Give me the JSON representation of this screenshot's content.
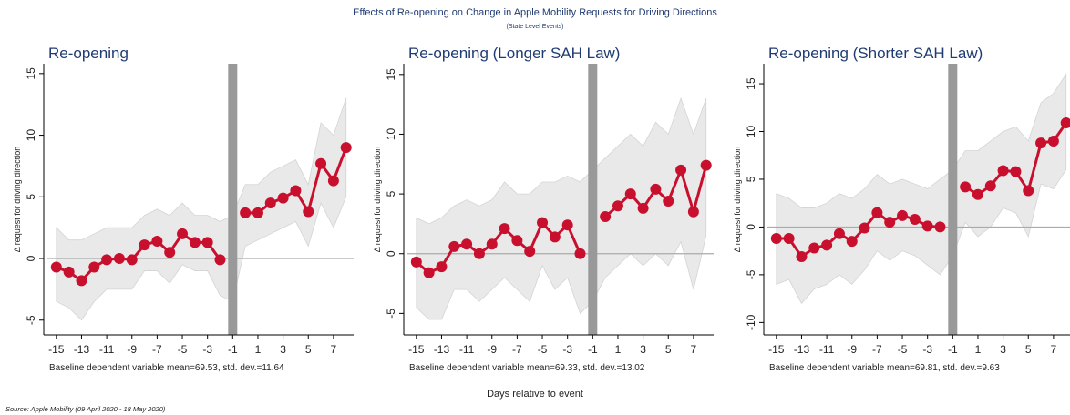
{
  "title": "Effects of Re-opening on Change in Apple Mobility Requests for Driving Directions",
  "subtitle": "(State Level Events)",
  "xlabel": "Days relative to event",
  "source": "Source: Apple Mobility (09 April 2020 - 18 May 2020)",
  "chart_data": [
    {
      "type": "line",
      "title": "Re-opening",
      "ylabel": "Δ request for driving direction",
      "note": "Baseline dependent variable mean=69.53, std. dev.=11.64",
      "x": [
        -15,
        -14,
        -13,
        -12,
        -11,
        -10,
        -9,
        -8,
        -7,
        -6,
        -5,
        -4,
        -3,
        -2,
        -1,
        0,
        1,
        2,
        3,
        4,
        5,
        6,
        7,
        8
      ],
      "values": [
        -0.7,
        -1.1,
        -1.8,
        -0.7,
        -0.1,
        0,
        -0.1,
        1.1,
        1.4,
        0.5,
        2.0,
        1.3,
        1.3,
        -0.1,
        null,
        3.7,
        3.7,
        4.5,
        4.9,
        5.5,
        3.8,
        7.7,
        6.3,
        9.0
      ],
      "ci_upper": [
        2.5,
        1.5,
        1.5,
        2,
        2.5,
        2.5,
        2.5,
        3.5,
        4,
        3.5,
        4.5,
        3.5,
        3.5,
        3,
        3.5,
        6,
        6,
        7,
        7.5,
        8,
        6,
        11,
        10,
        13
      ],
      "ci_lower": [
        -3.5,
        -4,
        -5,
        -3.5,
        -2.5,
        -2.5,
        -2.5,
        -1,
        -1,
        -2,
        -0.5,
        -1,
        -1,
        -3,
        -3.5,
        1,
        1.5,
        2,
        2.5,
        3,
        1,
        4.5,
        2.5,
        5
      ],
      "color": "#c8102e",
      "band_color": "#e9e9e9",
      "event_x": -1,
      "event_color": "#999999",
      "hline": 0,
      "xlim": [
        -16,
        8.6
      ],
      "xticks": [
        -15,
        -13,
        -11,
        -9,
        -7,
        -5,
        -3,
        -1,
        1,
        3,
        5,
        7
      ],
      "ylim": [
        -6.2,
        15.8
      ],
      "yticks": [
        -5,
        0,
        5,
        10,
        15
      ]
    },
    {
      "type": "line",
      "title": "Re-opening (Longer SAH Law)",
      "ylabel": "Δ request for driving direction",
      "note": "Baseline dependent variable mean=69.33, std. dev.=13.02",
      "x": [
        -15,
        -14,
        -13,
        -12,
        -11,
        -10,
        -9,
        -8,
        -7,
        -6,
        -5,
        -4,
        -3,
        -2,
        -1,
        0,
        1,
        2,
        3,
        4,
        5,
        6,
        7,
        8
      ],
      "values": [
        -0.7,
        -1.6,
        -1.1,
        0.6,
        0.8,
        0,
        0.8,
        2.1,
        1.1,
        0.2,
        2.6,
        1.4,
        2.4,
        0,
        null,
        3.1,
        4.0,
        5.0,
        3.8,
        5.4,
        4.4,
        7.0,
        3.5,
        7.4
      ],
      "ci_upper": [
        3,
        2.5,
        3,
        4,
        4.5,
        4,
        4.5,
        6,
        5,
        5,
        6,
        6,
        6.5,
        6,
        7,
        8,
        9,
        10,
        9,
        11,
        10,
        13,
        10,
        13
      ],
      "ci_lower": [
        -4.5,
        -5.5,
        -5.5,
        -3,
        -3,
        -4,
        -3,
        -2,
        -3,
        -4,
        -1,
        -3,
        -2,
        -5,
        -4,
        -2,
        -1,
        0,
        -1,
        0,
        -1,
        1,
        -3,
        1.5
      ],
      "color": "#c8102e",
      "band_color": "#e9e9e9",
      "event_x": -1,
      "event_color": "#999999",
      "hline": 0,
      "xlim": [
        -16,
        8.6
      ],
      "xticks": [
        -15,
        -13,
        -11,
        -9,
        -7,
        -5,
        -3,
        -1,
        1,
        3,
        5,
        7
      ],
      "ylim": [
        -6.8,
        15.9
      ],
      "yticks": [
        -5,
        0,
        5,
        10,
        15
      ]
    },
    {
      "type": "line",
      "title": "Re-opening (Shorter SAH Law)",
      "ylabel": "Δ request for driving direction",
      "note": "Baseline dependent variable mean=69.81, std. dev.=9.63",
      "x": [
        -15,
        -14,
        -13,
        -12,
        -11,
        -10,
        -9,
        -8,
        -7,
        -6,
        -5,
        -4,
        -3,
        -2,
        -1,
        0,
        1,
        2,
        3,
        4,
        5,
        6,
        7,
        8
      ],
      "values": [
        -1.2,
        -1.2,
        -3.1,
        -2.2,
        -1.9,
        -0.7,
        -1.5,
        -0.1,
        1.5,
        0.5,
        1.2,
        0.8,
        0.1,
        0,
        null,
        4.2,
        3.4,
        4.3,
        5.9,
        5.8,
        3.8,
        8.8,
        9.0,
        10.9
      ],
      "ci_upper": [
        3.5,
        3,
        2,
        2,
        2.5,
        3.5,
        3,
        4,
        5.5,
        4.5,
        5,
        4.5,
        4,
        5,
        6,
        8,
        8,
        9,
        10,
        10.5,
        9,
        13,
        14,
        16
      ],
      "ci_lower": [
        -6,
        -5.5,
        -8,
        -6.5,
        -6,
        -5,
        -6,
        -4.5,
        -2.5,
        -3.5,
        -2.5,
        -3,
        -4,
        -5,
        -3,
        0.5,
        -1,
        0,
        2,
        1.5,
        -1,
        4.5,
        4,
        6
      ],
      "color": "#c8102e",
      "band_color": "#e9e9e9",
      "event_x": -1,
      "event_color": "#999999",
      "hline": 0,
      "xlim": [
        -16,
        8.6
      ],
      "xticks": [
        -15,
        -13,
        -11,
        -9,
        -7,
        -5,
        -3,
        -1,
        1,
        3,
        5,
        7
      ],
      "ylim": [
        -11.3,
        17.1
      ],
      "yticks": [
        -10,
        -5,
        0,
        5,
        10,
        15
      ]
    }
  ]
}
